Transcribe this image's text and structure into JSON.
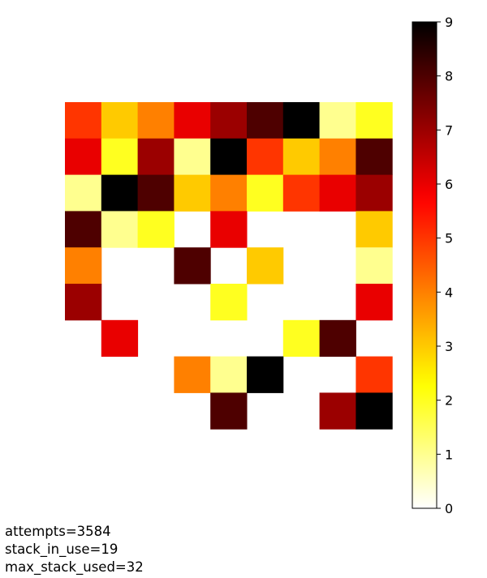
{
  "chart_data": {
    "type": "heatmap",
    "title": "",
    "xlabel": "",
    "ylabel": "",
    "rows": 9,
    "cols": 9,
    "colormap": "hot_r",
    "vmin": 0,
    "vmax": 9,
    "colorbar_ticks": [
      "0",
      "1",
      "2",
      "3",
      "4",
      "5",
      "6",
      "7",
      "8",
      "9"
    ],
    "values": [
      [
        5,
        3,
        4,
        6,
        7,
        8,
        9,
        1,
        2
      ],
      [
        6,
        2,
        7,
        1,
        9,
        5,
        3,
        4,
        8
      ],
      [
        1,
        9,
        8,
        3,
        4,
        2,
        5,
        6,
        7
      ],
      [
        8,
        1,
        2,
        null,
        6,
        null,
        null,
        null,
        3
      ],
      [
        4,
        null,
        null,
        8,
        null,
        3,
        null,
        null,
        1
      ],
      [
        7,
        null,
        null,
        null,
        2,
        null,
        null,
        null,
        6
      ],
      [
        null,
        6,
        null,
        null,
        null,
        null,
        2,
        8,
        null
      ],
      [
        null,
        null,
        null,
        4,
        1,
        9,
        null,
        null,
        5
      ],
      [
        null,
        null,
        null,
        null,
        8,
        null,
        null,
        7,
        9
      ]
    ],
    "grid": false,
    "axes_visible": false
  },
  "status": {
    "attempts": "attempts=3584",
    "stack_in_use": "stack_in_use=19",
    "max_stack_used": "max_stack_used=32"
  }
}
